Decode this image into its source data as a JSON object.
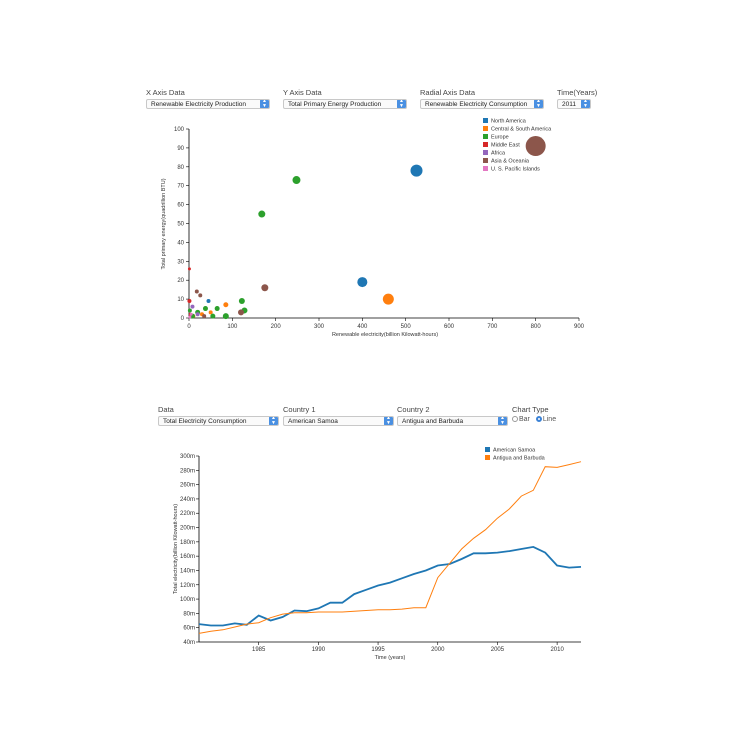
{
  "scatter_controls": {
    "x_label": "X Axis Data",
    "x_value": "Renewable Electricity Production",
    "y_label": "Y Axis Data",
    "y_value": "Total Primary Energy Production",
    "r_label": "Radial Axis Data",
    "r_value": "Renewable Electricity Consumption",
    "t_label": "Time(Years)",
    "t_value": "2011"
  },
  "line_controls": {
    "data_label": "Data",
    "data_value": "Total Electricity Consumption",
    "c1_label": "Country 1",
    "c1_value": "American Samoa",
    "c2_label": "Country 2",
    "c2_value": "Antigua and Barbuda",
    "type_label": "Chart Type",
    "bar_label": "Bar",
    "line_label": "Line",
    "selected": "Line"
  },
  "colors": {
    "North America": "#1f77b4",
    "Central & South America": "#ff7f0e",
    "Europe": "#2ca02c",
    "Middle East": "#d62728",
    "Africa": "#9467bd",
    "Asia & Oceania": "#8c564b",
    "U. S. Pacific Islands": "#e377c2"
  },
  "chart_data": [
    {
      "type": "scatter",
      "xlabel": "Renewable electricity(billion Kilowatt-hours)",
      "ylabel": "Total primary energy(quadrillion BTU)",
      "xlim": [
        0,
        900
      ],
      "ylim": [
        0,
        100
      ],
      "x_ticks": [
        0,
        100,
        200,
        300,
        400,
        500,
        600,
        700,
        800,
        900
      ],
      "y_ticks": [
        0,
        10,
        20,
        30,
        40,
        50,
        60,
        70,
        80,
        90,
        100
      ],
      "legend": [
        "North America",
        "Central & South America",
        "Europe",
        "Middle East",
        "Africa",
        "Asia & Oceania",
        "U. S. Pacific Islands"
      ],
      "legend_position": "top-right",
      "points": [
        {
          "region": "North America",
          "x": 525,
          "y": 78,
          "r": 6
        },
        {
          "region": "North America",
          "x": 400,
          "y": 19,
          "r": 5
        },
        {
          "region": "North America",
          "x": 45,
          "y": 9,
          "r": 2
        },
        {
          "region": "Central & South America",
          "x": 460,
          "y": 10,
          "r": 5.5
        },
        {
          "region": "Central & South America",
          "x": 85,
          "y": 7,
          "r": 2.5
        },
        {
          "region": "Central & South America",
          "x": 50,
          "y": 3,
          "r": 2
        },
        {
          "region": "Central & South America",
          "x": 30,
          "y": 2,
          "r": 2
        },
        {
          "region": "Central & South America",
          "x": 10,
          "y": 1,
          "r": 2
        },
        {
          "region": "Europe",
          "x": 248,
          "y": 73,
          "r": 4
        },
        {
          "region": "Europe",
          "x": 168,
          "y": 55,
          "r": 3.5
        },
        {
          "region": "Europe",
          "x": 122,
          "y": 9,
          "r": 3
        },
        {
          "region": "Europe",
          "x": 128,
          "y": 4,
          "r": 3
        },
        {
          "region": "Europe",
          "x": 85,
          "y": 1,
          "r": 3
        },
        {
          "region": "Europe",
          "x": 65,
          "y": 5,
          "r": 2.5
        },
        {
          "region": "Europe",
          "x": 38,
          "y": 5,
          "r": 2.5
        },
        {
          "region": "Europe",
          "x": 20,
          "y": 3,
          "r": 2.5
        },
        {
          "region": "Europe",
          "x": 55,
          "y": 1,
          "r": 2.5
        },
        {
          "region": "Europe",
          "x": 8,
          "y": 1,
          "r": 2.5
        },
        {
          "region": "Europe",
          "x": 2,
          "y": 4,
          "r": 2
        },
        {
          "region": "Middle East",
          "x": 1,
          "y": 26,
          "r": 1.5
        },
        {
          "region": "Middle East",
          "x": 1,
          "y": 9,
          "r": 2
        },
        {
          "region": "Middle East",
          "x": 3,
          "y": 2,
          "r": 1.5
        },
        {
          "region": "Africa",
          "x": 8,
          "y": 6,
          "r": 2
        },
        {
          "region": "Africa",
          "x": 20,
          "y": 2,
          "r": 2
        },
        {
          "region": "Asia & Oceania",
          "x": 800,
          "y": 91,
          "r": 10
        },
        {
          "region": "Asia & Oceania",
          "x": 175,
          "y": 16,
          "r": 3.5
        },
        {
          "region": "Asia & Oceania",
          "x": 120,
          "y": 3,
          "r": 3
        },
        {
          "region": "Asia & Oceania",
          "x": 18,
          "y": 14,
          "r": 2
        },
        {
          "region": "Asia & Oceania",
          "x": 26,
          "y": 12,
          "r": 2
        },
        {
          "region": "Asia & Oceania",
          "x": 35,
          "y": 1,
          "r": 2
        },
        {
          "region": "U. S. Pacific Islands",
          "x": 2,
          "y": 0.5,
          "r": 1.5
        },
        {
          "region": "U. S. Pacific Islands",
          "x": 5,
          "y": 2,
          "r": 1.5
        }
      ]
    },
    {
      "type": "line",
      "xlabel": "Time (years)",
      "ylabel": "Total electricity(billion Kilowatt-hours)",
      "xlim": [
        1980,
        2012
      ],
      "ylim": [
        40,
        300
      ],
      "x_ticks": [
        1985,
        1990,
        1995,
        2000,
        2005,
        2010
      ],
      "y_ticks": [
        40,
        60,
        80,
        100,
        120,
        140,
        160,
        180,
        200,
        220,
        240,
        260,
        280,
        300
      ],
      "y_tick_labels": [
        "40m",
        "60m",
        "80m",
        "100m",
        "120m",
        "140m",
        "160m",
        "180m",
        "200m",
        "220m",
        "240m",
        "260m",
        "280m",
        "300m"
      ],
      "x_tick_labels": [
        "1985",
        "1990",
        "1995",
        "2000",
        "2005",
        "2010"
      ],
      "legend_position": "top-right",
      "x": [
        1980,
        1981,
        1982,
        1983,
        1984,
        1985,
        1986,
        1987,
        1988,
        1989,
        1990,
        1991,
        1992,
        1993,
        1994,
        1995,
        1996,
        1997,
        1998,
        1999,
        2000,
        2001,
        2002,
        2003,
        2004,
        2005,
        2006,
        2007,
        2008,
        2009,
        2010,
        2011,
        2012
      ],
      "series": [
        {
          "name": "American Samoa",
          "color": "#1f77b4",
          "width": 1.8,
          "values": [
            65,
            63,
            63,
            66,
            64,
            77,
            70,
            75,
            84,
            83,
            87,
            95,
            95,
            107,
            113,
            119,
            123,
            129,
            135,
            140,
            147,
            149,
            156,
            164,
            164,
            165,
            167,
            170,
            173,
            165,
            147,
            144,
            145
          ]
        },
        {
          "name": "Antigua and Barbuda",
          "color": "#ff7f0e",
          "width": 1.0,
          "values": [
            52,
            55,
            57,
            61,
            65,
            67,
            74,
            79,
            81,
            81,
            82,
            82,
            82,
            83,
            84,
            85,
            85,
            86,
            88,
            88,
            130,
            150,
            170,
            185,
            197,
            213,
            226,
            244,
            252,
            285,
            284,
            288,
            292
          ]
        }
      ]
    }
  ]
}
